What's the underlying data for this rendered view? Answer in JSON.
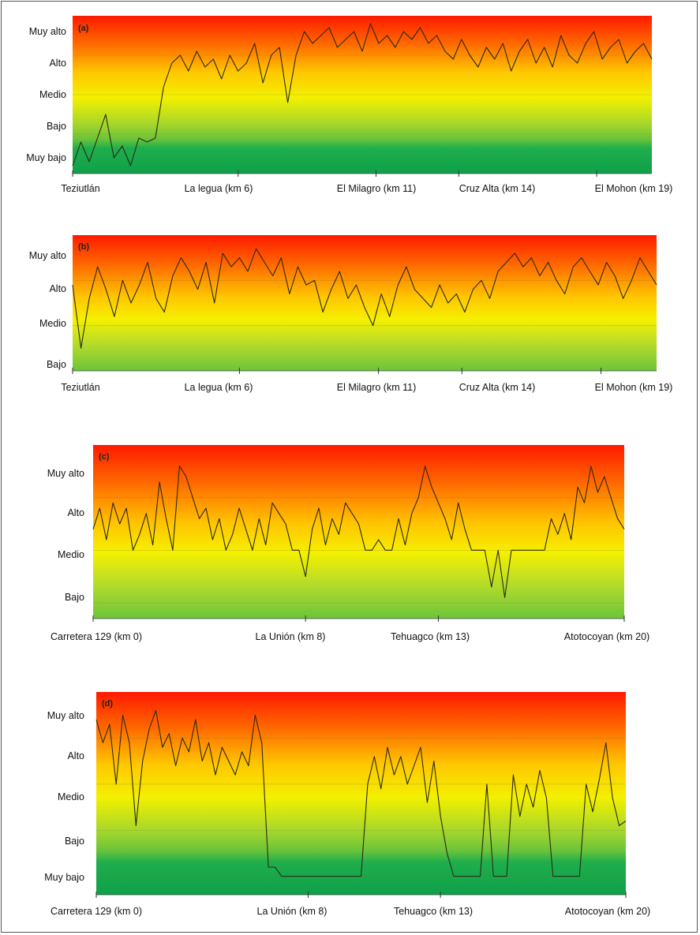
{
  "chart_data": [
    {
      "type": "line",
      "panel_label": "(a)",
      "y_levels": [
        "Muy bajo",
        "Bajo",
        "Medio",
        "Alto",
        "Muy alto"
      ],
      "x_ticks": [
        "Teziutlán",
        "La legua (km 6)",
        "El Milagro (km 11)",
        "Cruz Alta (km 14)",
        "El Mohon (km 19)"
      ],
      "x_tick_km": [
        0,
        6,
        11,
        14,
        19
      ],
      "xlim": [
        0,
        21
      ],
      "ylim": [
        1,
        5
      ],
      "series": [
        {
          "x": [
            0,
            0.3,
            0.6,
            0.9,
            1.2,
            1.5,
            1.8,
            2.1,
            2.4,
            2.7,
            3.0,
            3.3,
            3.6,
            3.9,
            4.2,
            4.5,
            4.8,
            5.1,
            5.4,
            5.7,
            6.0,
            6.3,
            6.6,
            6.9,
            7.2,
            7.5,
            7.8,
            8.1,
            8.4,
            8.7,
            9.0,
            9.3,
            9.6,
            9.9,
            10.2,
            10.5,
            10.8,
            11.1,
            11.4,
            11.7,
            12.0,
            12.3,
            12.6,
            12.9,
            13.2,
            13.5,
            13.8,
            14.1,
            14.4,
            14.7,
            15.0,
            15.3,
            15.6,
            15.9,
            16.2,
            16.5,
            16.8,
            17.1,
            17.4,
            17.7,
            18.0,
            18.3,
            18.6,
            18.9,
            19.2,
            19.5,
            19.8,
            20.1,
            20.4,
            20.7,
            21.0
          ],
          "y": [
            1.2,
            1.8,
            1.3,
            1.9,
            2.5,
            1.4,
            1.7,
            1.2,
            1.9,
            1.8,
            1.9,
            3.2,
            3.8,
            4.0,
            3.6,
            4.1,
            3.7,
            3.9,
            3.4,
            4.0,
            3.6,
            3.8,
            4.3,
            3.3,
            4.0,
            4.2,
            2.8,
            4.0,
            4.6,
            4.3,
            4.5,
            4.7,
            4.2,
            4.4,
            4.6,
            4.1,
            4.8,
            4.3,
            4.5,
            4.2,
            4.6,
            4.4,
            4.7,
            4.3,
            4.5,
            4.1,
            3.9,
            4.4,
            4.0,
            3.7,
            4.2,
            3.9,
            4.3,
            3.6,
            4.1,
            4.4,
            3.8,
            4.2,
            3.7,
            4.5,
            4.0,
            3.8,
            4.3,
            4.6,
            3.9,
            4.2,
            4.4,
            3.8,
            4.1,
            4.3,
            3.9
          ]
        }
      ]
    },
    {
      "type": "line",
      "panel_label": "(b)",
      "y_levels": [
        "Bajo",
        "Medio",
        "Alto",
        "Muy alto"
      ],
      "x_ticks": [
        "Teziutlán",
        "La legua (km 6)",
        "El Milagro (km 11)",
        "Cruz Alta (km 14)",
        "El Mohon (km 19)"
      ],
      "x_tick_km": [
        0,
        6,
        11,
        14,
        19
      ],
      "xlim": [
        0,
        21
      ],
      "ylim": [
        2,
        5
      ],
      "series": [
        {
          "x": [
            0,
            0.3,
            0.6,
            0.9,
            1.2,
            1.5,
            1.8,
            2.1,
            2.4,
            2.7,
            3.0,
            3.3,
            3.6,
            3.9,
            4.2,
            4.5,
            4.8,
            5.1,
            5.4,
            5.7,
            6.0,
            6.3,
            6.6,
            6.9,
            7.2,
            7.5,
            7.8,
            8.1,
            8.4,
            8.7,
            9.0,
            9.3,
            9.6,
            9.9,
            10.2,
            10.5,
            10.8,
            11.1,
            11.4,
            11.7,
            12.0,
            12.3,
            12.6,
            12.9,
            13.2,
            13.5,
            13.8,
            14.1,
            14.4,
            14.7,
            15.0,
            15.3,
            15.6,
            15.9,
            16.2,
            16.5,
            16.8,
            17.1,
            17.4,
            17.7,
            18.0,
            18.3,
            18.6,
            18.9,
            19.2,
            19.5,
            19.8,
            20.1,
            20.4,
            20.7,
            21.0
          ],
          "y": [
            3.9,
            2.5,
            3.6,
            4.3,
            3.8,
            3.2,
            4.0,
            3.5,
            3.9,
            4.4,
            3.6,
            3.3,
            4.1,
            4.5,
            4.2,
            3.8,
            4.4,
            3.5,
            4.6,
            4.3,
            4.5,
            4.2,
            4.7,
            4.4,
            4.1,
            4.5,
            3.7,
            4.3,
            3.9,
            4.0,
            3.3,
            3.8,
            4.2,
            3.6,
            3.9,
            3.4,
            3.0,
            3.7,
            3.2,
            3.9,
            4.3,
            3.8,
            3.6,
            3.4,
            3.9,
            3.5,
            3.7,
            3.3,
            3.8,
            4.0,
            3.6,
            4.2,
            4.4,
            4.6,
            4.3,
            4.5,
            4.1,
            4.4,
            4.0,
            3.7,
            4.3,
            4.5,
            4.2,
            3.9,
            4.4,
            4.1,
            3.6,
            4.0,
            4.5,
            4.2,
            3.9
          ]
        }
      ]
    },
    {
      "type": "line",
      "panel_label": "(c)",
      "y_levels": [
        "Bajo",
        "Medio",
        "Alto",
        "Muy alto"
      ],
      "x_ticks": [
        "Carretera 129 (km 0)",
        "La Unión (km 8)",
        "Tehuagco (km 13)",
        "Atotocoyan (km 20)"
      ],
      "x_tick_km": [
        0,
        8,
        13,
        20
      ],
      "xlim": [
        0,
        20
      ],
      "ylim": [
        1.7,
        5
      ],
      "series": [
        {
          "x": [
            0,
            0.25,
            0.5,
            0.75,
            1.0,
            1.25,
            1.5,
            1.75,
            2.0,
            2.25,
            2.5,
            2.75,
            3.0,
            3.25,
            3.5,
            3.75,
            4.0,
            4.25,
            4.5,
            4.75,
            5.0,
            5.25,
            5.5,
            5.75,
            6.0,
            6.25,
            6.5,
            6.75,
            7.0,
            7.25,
            7.5,
            7.75,
            8.0,
            8.25,
            8.5,
            8.75,
            9.0,
            9.25,
            9.5,
            9.75,
            10.0,
            10.25,
            10.5,
            10.75,
            11.0,
            11.25,
            11.5,
            11.75,
            12.0,
            12.25,
            12.5,
            12.75,
            13.0,
            13.25,
            13.5,
            13.75,
            14.0,
            14.25,
            14.5,
            14.75,
            15.0,
            15.25,
            15.5,
            15.75,
            16.0,
            16.25,
            16.5,
            16.75,
            17.0,
            17.25,
            17.5,
            17.75,
            18.0,
            18.25,
            18.5,
            18.75,
            19.0,
            19.25,
            19.5,
            19.75,
            20.0
          ],
          "y": [
            3.4,
            3.8,
            3.2,
            3.9,
            3.5,
            3.8,
            3.0,
            3.3,
            3.7,
            3.1,
            4.3,
            3.6,
            3.0,
            4.6,
            4.4,
            4.0,
            3.6,
            3.8,
            3.2,
            3.6,
            3.0,
            3.3,
            3.8,
            3.4,
            3.0,
            3.6,
            3.1,
            3.9,
            3.7,
            3.5,
            3.0,
            3.0,
            2.5,
            3.4,
            3.8,
            3.1,
            3.6,
            3.3,
            3.9,
            3.7,
            3.5,
            3.0,
            3.0,
            3.2,
            3.0,
            3.0,
            3.6,
            3.1,
            3.7,
            4.0,
            4.6,
            4.2,
            3.9,
            3.6,
            3.2,
            3.9,
            3.4,
            3.0,
            3.0,
            3.0,
            2.3,
            3.0,
            2.1,
            3.0,
            3.0,
            3.0,
            3.0,
            3.0,
            3.0,
            3.6,
            3.3,
            3.7,
            3.2,
            4.2,
            3.9,
            4.6,
            4.1,
            4.4,
            4.0,
            3.6,
            3.4
          ]
        }
      ]
    },
    {
      "type": "line",
      "panel_label": "(d)",
      "y_levels": [
        "Muy bajo",
        "Bajo",
        "Medio",
        "Alto",
        "Muy alto"
      ],
      "x_ticks": [
        "Carretera 129 (km 0)",
        "La Unión (km 8)",
        "Tehuagco (km 13)",
        "Atotocoyan (km 20)"
      ],
      "x_tick_km": [
        0,
        8,
        13,
        20
      ],
      "xlim": [
        0,
        20
      ],
      "ylim": [
        0.6,
        5
      ],
      "series": [
        {
          "x": [
            0,
            0.25,
            0.5,
            0.75,
            1.0,
            1.25,
            1.5,
            1.75,
            2.0,
            2.25,
            2.5,
            2.75,
            3.0,
            3.25,
            3.5,
            3.75,
            4.0,
            4.25,
            4.5,
            4.75,
            5.0,
            5.25,
            5.5,
            5.75,
            6.0,
            6.25,
            6.5,
            6.75,
            7.0,
            7.25,
            7.5,
            7.75,
            8.0,
            8.25,
            8.5,
            8.75,
            9.0,
            9.25,
            9.5,
            9.75,
            10.0,
            10.25,
            10.5,
            10.75,
            11.0,
            11.25,
            11.5,
            11.75,
            12.0,
            12.25,
            12.5,
            12.75,
            13.0,
            13.25,
            13.5,
            13.75,
            14.0,
            14.25,
            14.5,
            14.75,
            15.0,
            15.25,
            15.5,
            15.75,
            16.0,
            16.25,
            16.5,
            16.75,
            17.0,
            17.25,
            17.5,
            17.75,
            18.0,
            18.25,
            18.5,
            18.75,
            19.0,
            19.25,
            19.5,
            19.75,
            20.0
          ],
          "y": [
            4.4,
            3.9,
            4.3,
            3.0,
            4.5,
            3.9,
            2.1,
            3.5,
            4.2,
            4.6,
            3.8,
            4.1,
            3.4,
            4.0,
            3.7,
            4.4,
            3.5,
            3.9,
            3.2,
            3.8,
            3.5,
            3.2,
            3.7,
            3.4,
            4.5,
            3.9,
            1.2,
            1.2,
            1.0,
            1.0,
            1.0,
            1.0,
            1.0,
            1.0,
            1.0,
            1.0,
            1.0,
            1.0,
            1.0,
            1.0,
            1.0,
            3.0,
            3.6,
            2.9,
            3.8,
            3.2,
            3.6,
            3.0,
            3.4,
            3.8,
            2.6,
            3.5,
            2.3,
            1.5,
            1.0,
            1.0,
            1.0,
            1.0,
            1.0,
            3.0,
            1.0,
            1.0,
            1.0,
            3.2,
            2.3,
            3.0,
            2.5,
            3.3,
            2.7,
            1.0,
            1.0,
            1.0,
            1.0,
            1.0,
            3.0,
            2.4,
            3.1,
            3.9,
            2.7,
            2.1,
            2.2
          ]
        }
      ]
    }
  ]
}
